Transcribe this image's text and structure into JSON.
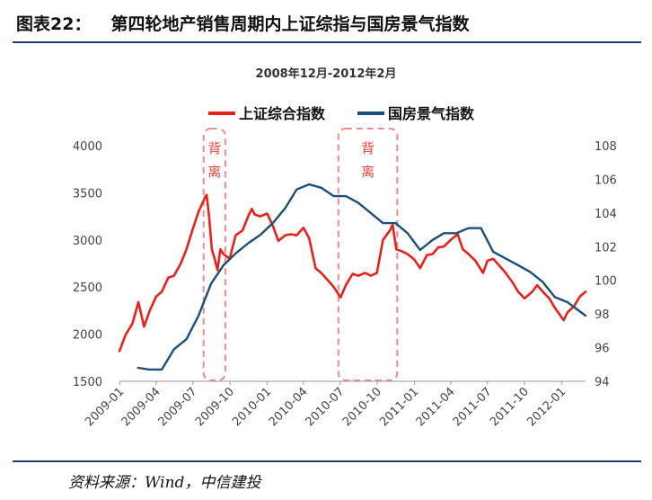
{
  "figure": {
    "number": "图表22：",
    "title": "第四轮地产销售周期内上证综指与国房景气指数",
    "source": "资料来源：Wind，中信建投"
  },
  "chart_data": {
    "type": "line",
    "subtitle": "2008年12月-2012年2月",
    "legend": [
      {
        "name": "上证综合指数",
        "color": "#e8211a"
      },
      {
        "name": "国房景气指数",
        "color": "#1b4f7a"
      }
    ],
    "legend_position": "top",
    "grid": false,
    "x_ticks": [
      "2009-01",
      "2009-04",
      "2009-07",
      "2009-10",
      "2010-01",
      "2010-04",
      "2010-07",
      "2010-10",
      "2011-01",
      "2011-04",
      "2011-07",
      "2011-10",
      "2012-01"
    ],
    "y_left": {
      "range": [
        1500,
        4000
      ],
      "ticks": [
        4000,
        3500,
        3000,
        2500,
        2000,
        1500
      ]
    },
    "y_right": {
      "range": [
        94,
        108
      ],
      "ticks": [
        108,
        106,
        104,
        102,
        100,
        98,
        96,
        94
      ]
    },
    "annotations": [
      {
        "text": "背离",
        "from": "2009-08",
        "to": "2009-09"
      },
      {
        "text": "背离",
        "from": "2010-07",
        "to": "2010-11"
      }
    ],
    "series": [
      {
        "name": "上证综合指数",
        "axis": "left",
        "color": "#e8211a",
        "x": [
          "2008-12-31",
          "2009-01-15",
          "2009-02-01",
          "2009-02-16",
          "2009-03-02",
          "2009-03-16",
          "2009-04-01",
          "2009-04-15",
          "2009-05-01",
          "2009-05-15",
          "2009-06-01",
          "2009-06-15",
          "2009-07-01",
          "2009-07-15",
          "2009-08-01",
          "2009-08-04",
          "2009-08-10",
          "2009-08-17",
          "2009-08-24",
          "2009-08-31",
          "2009-09-07",
          "2009-09-15",
          "2009-09-30",
          "2009-10-15",
          "2009-11-01",
          "2009-11-15",
          "2009-11-24",
          "2009-12-01",
          "2009-12-15",
          "2010-01-01",
          "2010-01-15",
          "2010-01-29",
          "2010-02-15",
          "2010-03-01",
          "2010-03-15",
          "2010-04-01",
          "2010-04-15",
          "2010-05-01",
          "2010-05-15",
          "2010-06-01",
          "2010-06-15",
          "2010-07-02",
          "2010-07-15",
          "2010-08-01",
          "2010-08-15",
          "2010-09-01",
          "2010-09-15",
          "2010-09-30",
          "2010-10-15",
          "2010-11-01",
          "2010-11-08",
          "2010-11-17",
          "2010-12-01",
          "2010-12-15",
          "2011-01-01",
          "2011-01-15",
          "2011-02-01",
          "2011-02-15",
          "2011-03-01",
          "2011-03-15",
          "2011-04-01",
          "2011-04-18",
          "2011-05-01",
          "2011-05-15",
          "2011-06-01",
          "2011-06-20",
          "2011-07-01",
          "2011-07-15",
          "2011-08-01",
          "2011-08-15",
          "2011-09-01",
          "2011-09-15",
          "2011-10-01",
          "2011-10-20",
          "2011-11-01",
          "2011-11-15",
          "2011-12-01",
          "2011-12-15",
          "2012-01-06",
          "2012-01-15",
          "2012-02-01",
          "2012-02-15",
          "2012-02-29"
        ],
        "values": [
          1821,
          1990,
          2110,
          2340,
          2080,
          2250,
          2400,
          2450,
          2600,
          2620,
          2750,
          2900,
          3120,
          3300,
          3460,
          3478,
          3250,
          2900,
          2800,
          2680,
          2900,
          2850,
          2800,
          3050,
          3100,
          3250,
          3330,
          3270,
          3250,
          3280,
          3150,
          2990,
          3050,
          3060,
          3050,
          3130,
          3020,
          2700,
          2650,
          2570,
          2500,
          2390,
          2520,
          2640,
          2620,
          2650,
          2620,
          2650,
          3000,
          3100,
          3160,
          2900,
          2880,
          2850,
          2790,
          2700,
          2840,
          2850,
          2920,
          2930,
          3000,
          3060,
          2900,
          2850,
          2780,
          2650,
          2780,
          2800,
          2720,
          2650,
          2550,
          2450,
          2380,
          2450,
          2520,
          2450,
          2380,
          2280,
          2148,
          2230,
          2300,
          2400,
          2450
        ]
      },
      {
        "name": "国房景气指数",
        "axis": "right",
        "color": "#1b4f7a",
        "x": [
          "2009-02-15",
          "2009-03-15",
          "2009-04-15",
          "2009-05-15",
          "2009-06-15",
          "2009-07-15",
          "2009-08-15",
          "2009-09-15",
          "2009-10-15",
          "2009-11-15",
          "2009-12-15",
          "2010-01-15",
          "2010-02-15",
          "2010-03-15",
          "2010-04-15",
          "2010-05-15",
          "2010-06-15",
          "2010-07-15",
          "2010-08-15",
          "2010-09-15",
          "2010-10-15",
          "2010-11-15",
          "2010-12-15",
          "2011-01-15",
          "2011-02-15",
          "2011-03-15",
          "2011-04-15",
          "2011-05-15",
          "2011-06-15",
          "2011-07-15",
          "2011-08-15",
          "2011-09-15",
          "2011-10-15",
          "2011-11-15",
          "2011-12-15",
          "2012-01-15",
          "2012-02-29"
        ],
        "values": [
          94.8,
          94.7,
          94.7,
          95.9,
          96.5,
          97.9,
          99.8,
          100.9,
          101.6,
          102.2,
          102.7,
          103.4,
          104.3,
          105.4,
          105.7,
          105.5,
          105.0,
          105.0,
          104.6,
          104.0,
          103.4,
          103.4,
          102.8,
          101.8,
          102.4,
          102.8,
          102.8,
          103.1,
          103.1,
          101.7,
          101.3,
          100.9,
          100.5,
          99.9,
          99.0,
          98.7,
          97.9
        ]
      }
    ]
  }
}
